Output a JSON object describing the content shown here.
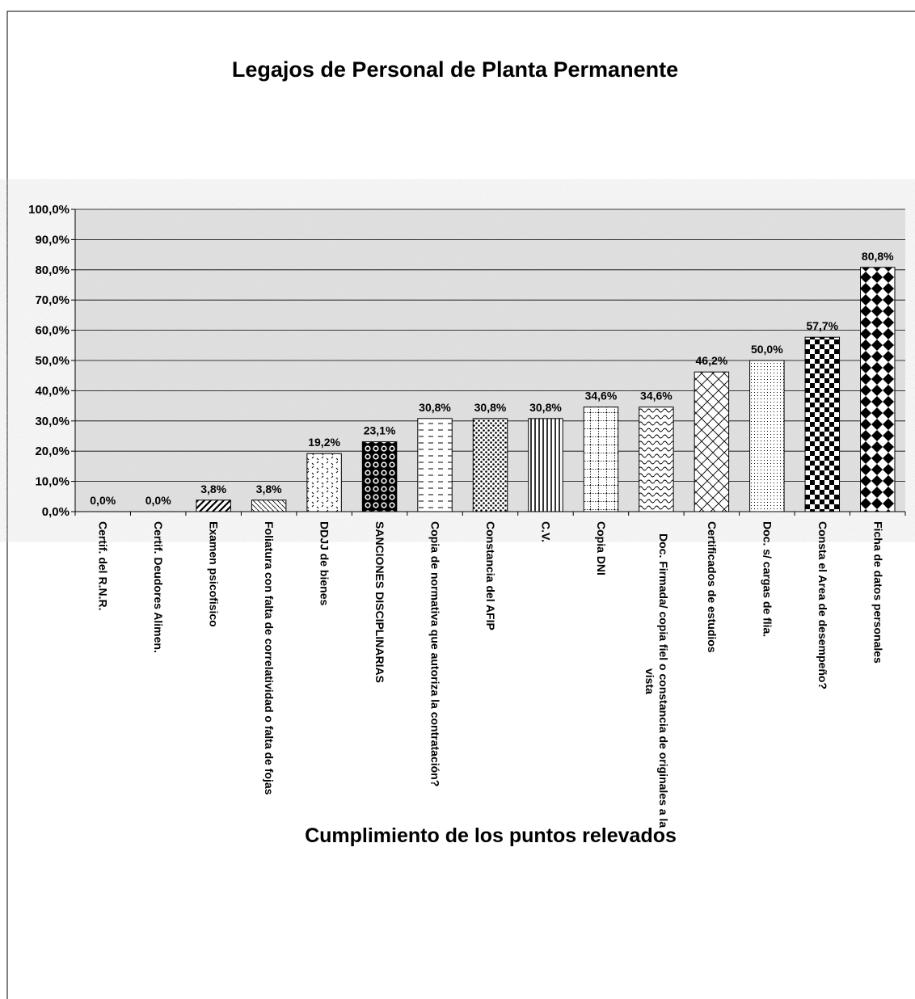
{
  "chart_data": {
    "type": "bar",
    "title": "Legajos de Personal de Planta Permanente",
    "x_label": "Cumplimiento de los puntos relevados",
    "categories": [
      "Certif. del R.N.R.",
      "Certif. Deudores Alimen.",
      "Examen psicofisico",
      "Foliatura con falta de correlatividad o falta de fojas",
      "DDJJ de bienes",
      "SANCIONES DISCIPLINARIAS",
      "Copia de normativa que autoriza la contratación?",
      "Constancia del AFIP",
      "C.V.",
      "Copia DNI",
      "Doc. Firmada/ copia fiel o constancia de originales a la vista",
      "Certificados de estudios",
      "Doc. s/ cargas de flia.",
      "Consta el Area de desempeño?",
      "Ficha de datos personales"
    ],
    "values": [
      0,
      0,
      3.8,
      3.8,
      19.2,
      23.1,
      30.8,
      30.8,
      30.8,
      34.6,
      34.6,
      46.2,
      50,
      57.7,
      80.8
    ],
    "value_labels": [
      "0,0%",
      "0,0%",
      "3,8%",
      "3,8%",
      "19,2%",
      "23,1%",
      "30,8%",
      "30,8%",
      "30,8%",
      "34,6%",
      "34,6%",
      "46,2%",
      "50,0%",
      "57,7%",
      "80,8%"
    ],
    "ylim": [
      0,
      100
    ],
    "yticks": [
      {
        "value": 0,
        "label": "0,0%"
      },
      {
        "value": 10,
        "label": "10,0%"
      },
      {
        "value": 20,
        "label": "20,0%"
      },
      {
        "value": 30,
        "label": "30,0%"
      },
      {
        "value": 40,
        "label": "40,0%"
      },
      {
        "value": 50,
        "label": "50,0%"
      },
      {
        "value": 60,
        "label": "60,0%"
      },
      {
        "value": 70,
        "label": "70,0%"
      },
      {
        "value": 80,
        "label": "80,0%"
      },
      {
        "value": 90,
        "label": "90,0%"
      },
      {
        "value": 100,
        "label": "100,0%"
      }
    ],
    "grid": true
  }
}
